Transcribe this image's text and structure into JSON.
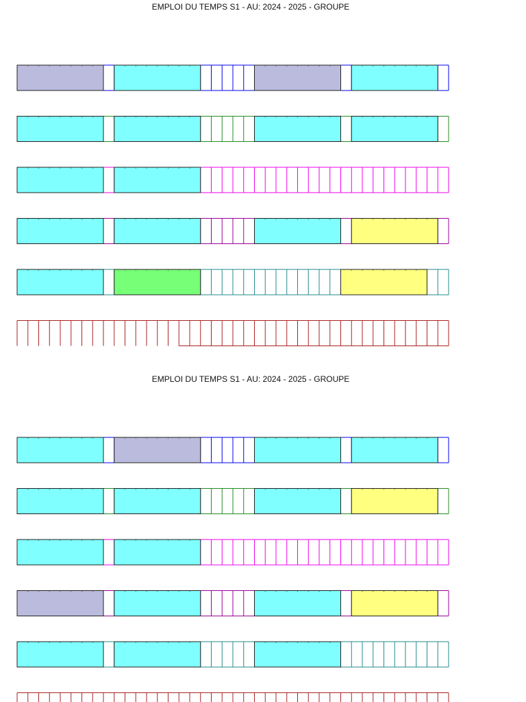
{
  "schedules": [
    {
      "title": "EMPLOI DU TEMPS S1 - AU: 2024 - 2025 - GROUPE",
      "days": [
        {
          "line_color": "#0000ee",
          "blocks": [
            {
              "start": 0,
              "span": 8,
              "color": "#bbbbdd"
            },
            {
              "start": 9,
              "span": 8,
              "color": "#7fffff"
            },
            {
              "start": 22,
              "span": 8,
              "color": "#bbbbdd"
            },
            {
              "start": 31,
              "span": 8,
              "color": "#7fffff"
            }
          ]
        },
        {
          "line_color": "#228b22",
          "blocks": [
            {
              "start": 0,
              "span": 8,
              "color": "#7fffff"
            },
            {
              "start": 9,
              "span": 8,
              "color": "#7fffff"
            },
            {
              "start": 22,
              "span": 8,
              "color": "#7fffff"
            },
            {
              "start": 31,
              "span": 8,
              "color": "#7fffff"
            }
          ]
        },
        {
          "line_color": "#ee00ee",
          "blocks": [
            {
              "start": 0,
              "span": 8,
              "color": "#7fffff"
            },
            {
              "start": 9,
              "span": 8,
              "color": "#7fffff"
            }
          ]
        },
        {
          "line_color": "#990099",
          "blocks": [
            {
              "start": 0,
              "span": 8,
              "color": "#7fffff"
            },
            {
              "start": 9,
              "span": 8,
              "color": "#7fffff"
            },
            {
              "start": 22,
              "span": 8,
              "color": "#7fffff"
            },
            {
              "start": 31,
              "span": 8,
              "color": "#ffff80"
            }
          ]
        },
        {
          "line_color": "#228b8b",
          "blocks": [
            {
              "start": 0,
              "span": 8,
              "color": "#7fffff"
            },
            {
              "start": 9,
              "span": 8,
              "color": "#77ff77"
            },
            {
              "start": 30,
              "span": 8,
              "color": "#ffff80"
            }
          ]
        },
        {
          "line_color": "#aa2222",
          "blocks": [],
          "bottom_from": 15
        }
      ]
    },
    {
      "title": "EMPLOI DU TEMPS S1 - AU: 2024 - 2025 - GROUPE",
      "days": [
        {
          "line_color": "#0000ee",
          "blocks": [
            {
              "start": 0,
              "span": 8,
              "color": "#7fffff"
            },
            {
              "start": 9,
              "span": 8,
              "color": "#bbbbdd"
            },
            {
              "start": 22,
              "span": 8,
              "color": "#7fffff"
            },
            {
              "start": 31,
              "span": 8,
              "color": "#7fffff"
            }
          ]
        },
        {
          "line_color": "#228b22",
          "blocks": [
            {
              "start": 0,
              "span": 8,
              "color": "#7fffff"
            },
            {
              "start": 9,
              "span": 8,
              "color": "#7fffff"
            },
            {
              "start": 22,
              "span": 8,
              "color": "#7fffff"
            },
            {
              "start": 31,
              "span": 8,
              "color": "#ffff80"
            }
          ]
        },
        {
          "line_color": "#ee00ee",
          "blocks": [
            {
              "start": 0,
              "span": 8,
              "color": "#7fffff"
            },
            {
              "start": 9,
              "span": 8,
              "color": "#7fffff"
            }
          ]
        },
        {
          "line_color": "#990099",
          "blocks": [
            {
              "start": 0,
              "span": 8,
              "color": "#bbbbdd"
            },
            {
              "start": 9,
              "span": 8,
              "color": "#7fffff"
            },
            {
              "start": 22,
              "span": 8,
              "color": "#7fffff"
            },
            {
              "start": 31,
              "span": 8,
              "color": "#ffff80"
            }
          ]
        },
        {
          "line_color": "#228b8b",
          "blocks": [
            {
              "start": 0,
              "span": 8,
              "color": "#7fffff"
            },
            {
              "start": 9,
              "span": 8,
              "color": "#7fffff"
            },
            {
              "start": 22,
              "span": 8,
              "color": "#7fffff"
            }
          ]
        },
        {
          "line_color": "#aa2222",
          "blocks": [],
          "bottom_from": 0
        }
      ]
    }
  ]
}
